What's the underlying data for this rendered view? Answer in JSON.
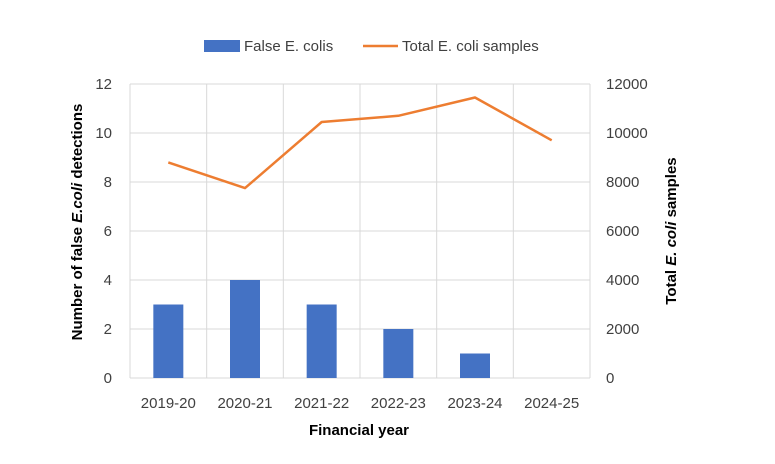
{
  "chart_data": {
    "type": "bar+line",
    "categories": [
      "2019-20",
      "2020-21",
      "2021-22",
      "2022-23",
      "2023-24",
      "2024-25"
    ],
    "series": [
      {
        "name": "False E. colis",
        "type": "bar",
        "axis": "left",
        "values": [
          3,
          4,
          3,
          2,
          1,
          0
        ],
        "color": "#4472C4"
      },
      {
        "name": "Total E. coli samples",
        "type": "line",
        "axis": "right",
        "values": [
          8800,
          7750,
          10450,
          10700,
          11450,
          9700
        ],
        "color": "#ED7D31"
      }
    ],
    "xlabel": "Financial year",
    "ylabel_left": {
      "prefix": "Number of false ",
      "italic": "E.coli",
      "suffix": " detections"
    },
    "ylabel_right": {
      "prefix": "Total ",
      "italic": "E. coli",
      "suffix": " samples"
    },
    "ylim_left": [
      0,
      12
    ],
    "yticks_left": [
      0,
      2,
      4,
      6,
      8,
      10,
      12
    ],
    "ylim_right": [
      0,
      12000
    ],
    "yticks_right": [
      0,
      2000,
      4000,
      6000,
      8000,
      10000,
      12000
    ],
    "grid": true,
    "legend_position": "top-center",
    "gridline_color": "#D9D9D9"
  }
}
